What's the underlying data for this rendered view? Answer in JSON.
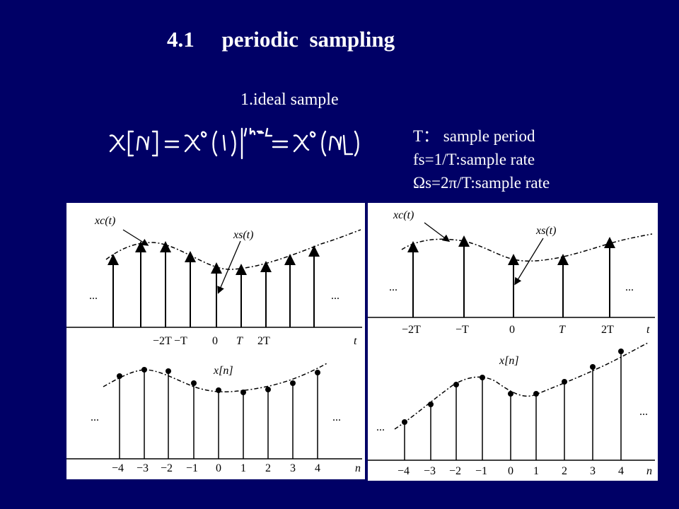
{
  "slide": {
    "title": "4.1     periodic  sampling",
    "subtitle": "1.ideal sample",
    "notes": [
      "T： sample period",
      "fs=1/T:sample rate",
      "Ωs=2π/T:sample rate"
    ]
  },
  "figures": {
    "left": {
      "top_labels": {
        "signal": "xc(t)",
        "impulses": "xs(t)",
        "axis": "t",
        "dots": "...",
        "ticks": [
          "−2T",
          "−T",
          "0",
          "T",
          "2T"
        ]
      },
      "bottom_labels": {
        "signal": "x[n]",
        "axis": "n",
        "dots": "...",
        "ticks": [
          "−4",
          "−3",
          "−2",
          "−1",
          "0",
          "1",
          "2",
          "3",
          "4"
        ]
      }
    },
    "right": {
      "top_labels": {
        "signal": "xc(t)",
        "impulses": "xs(t)",
        "axis": "t",
        "dots": "...",
        "ticks": [
          "−2T",
          "−T",
          "0",
          "T",
          "2T"
        ]
      },
      "bottom_labels": {
        "signal": "x[n]",
        "axis": "n",
        "dots": "...",
        "ticks": [
          "−4",
          "−3",
          "−2",
          "−1",
          "0",
          "1",
          "2",
          "3",
          "4"
        ]
      }
    }
  }
}
